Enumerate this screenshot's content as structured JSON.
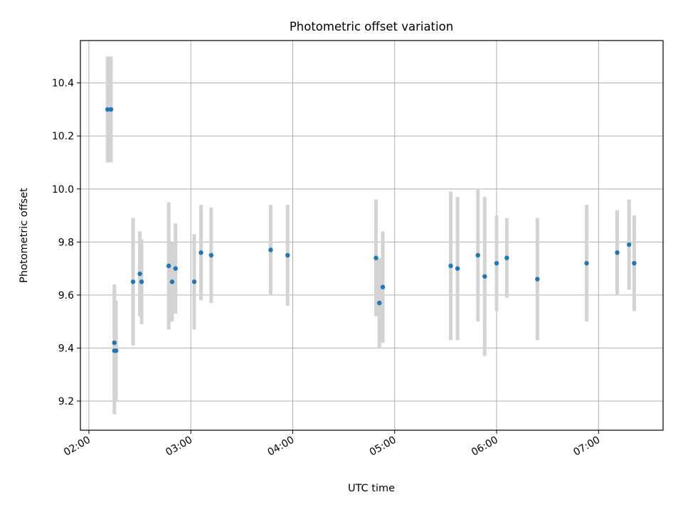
{
  "chart_data": {
    "type": "scatter",
    "title": "Photometric offset variation",
    "xlabel": "UTC time",
    "ylabel": "Photometric offset",
    "xlim": [
      "01:55",
      "07:38"
    ],
    "ylim": [
      9.09,
      10.56
    ],
    "x_ticks": [
      "02:00",
      "03:00",
      "04:00",
      "05:00",
      "06:00",
      "07:00"
    ],
    "y_ticks": [
      9.2,
      9.4,
      9.6,
      9.8,
      10.0,
      10.2,
      10.4
    ],
    "y_tick_labels": [
      "9.2",
      "9.4",
      "9.6",
      "9.8",
      "10.0",
      "10.2",
      "10.4"
    ],
    "grid": true,
    "colors": {
      "point": "#1f77b4",
      "errorbar": "#d3d3d3",
      "grid": "#b0b0b0"
    },
    "series": [
      {
        "points": [
          {
            "x": "02:11",
            "y": 10.3,
            "err": 0.2
          },
          {
            "x": "02:13",
            "y": 10.3,
            "err": 0.2
          },
          {
            "x": "02:15",
            "y": 9.39,
            "err": 0.24
          },
          {
            "x": "02:15",
            "y": 9.42,
            "err": 0.22
          },
          {
            "x": "02:16",
            "y": 9.39,
            "err": 0.19
          },
          {
            "x": "02:26",
            "y": 9.65,
            "err": 0.24
          },
          {
            "x": "02:30",
            "y": 9.68,
            "err": 0.16
          },
          {
            "x": "02:31",
            "y": 9.65,
            "err": 0.16
          },
          {
            "x": "02:47",
            "y": 9.71,
            "err": 0.24
          },
          {
            "x": "02:49",
            "y": 9.65,
            "err": 0.15
          },
          {
            "x": "02:51",
            "y": 9.7,
            "err": 0.17
          },
          {
            "x": "03:02",
            "y": 9.65,
            "err": 0.18
          },
          {
            "x": "03:06",
            "y": 9.76,
            "err": 0.18
          },
          {
            "x": "03:12",
            "y": 9.75,
            "err": 0.18
          },
          {
            "x": "03:47",
            "y": 9.77,
            "err": 0.17
          },
          {
            "x": "03:57",
            "y": 9.75,
            "err": 0.19
          },
          {
            "x": "04:49",
            "y": 9.74,
            "err": 0.22
          },
          {
            "x": "04:51",
            "y": 9.57,
            "err": 0.17
          },
          {
            "x": "04:53",
            "y": 9.63,
            "err": 0.21
          },
          {
            "x": "05:33",
            "y": 9.71,
            "err": 0.28
          },
          {
            "x": "05:37",
            "y": 9.7,
            "err": 0.27
          },
          {
            "x": "05:49",
            "y": 9.75,
            "err": 0.25
          },
          {
            "x": "05:53",
            "y": 9.67,
            "err": 0.3
          },
          {
            "x": "06:00",
            "y": 9.72,
            "err": 0.18
          },
          {
            "x": "06:06",
            "y": 9.74,
            "err": 0.15
          },
          {
            "x": "06:24",
            "y": 9.66,
            "err": 0.23
          },
          {
            "x": "06:53",
            "y": 9.72,
            "err": 0.22
          },
          {
            "x": "07:11",
            "y": 9.76,
            "err": 0.16
          },
          {
            "x": "07:18",
            "y": 9.79,
            "err": 0.17
          },
          {
            "x": "07:21",
            "y": 9.72,
            "err": 0.18
          }
        ]
      }
    ]
  }
}
